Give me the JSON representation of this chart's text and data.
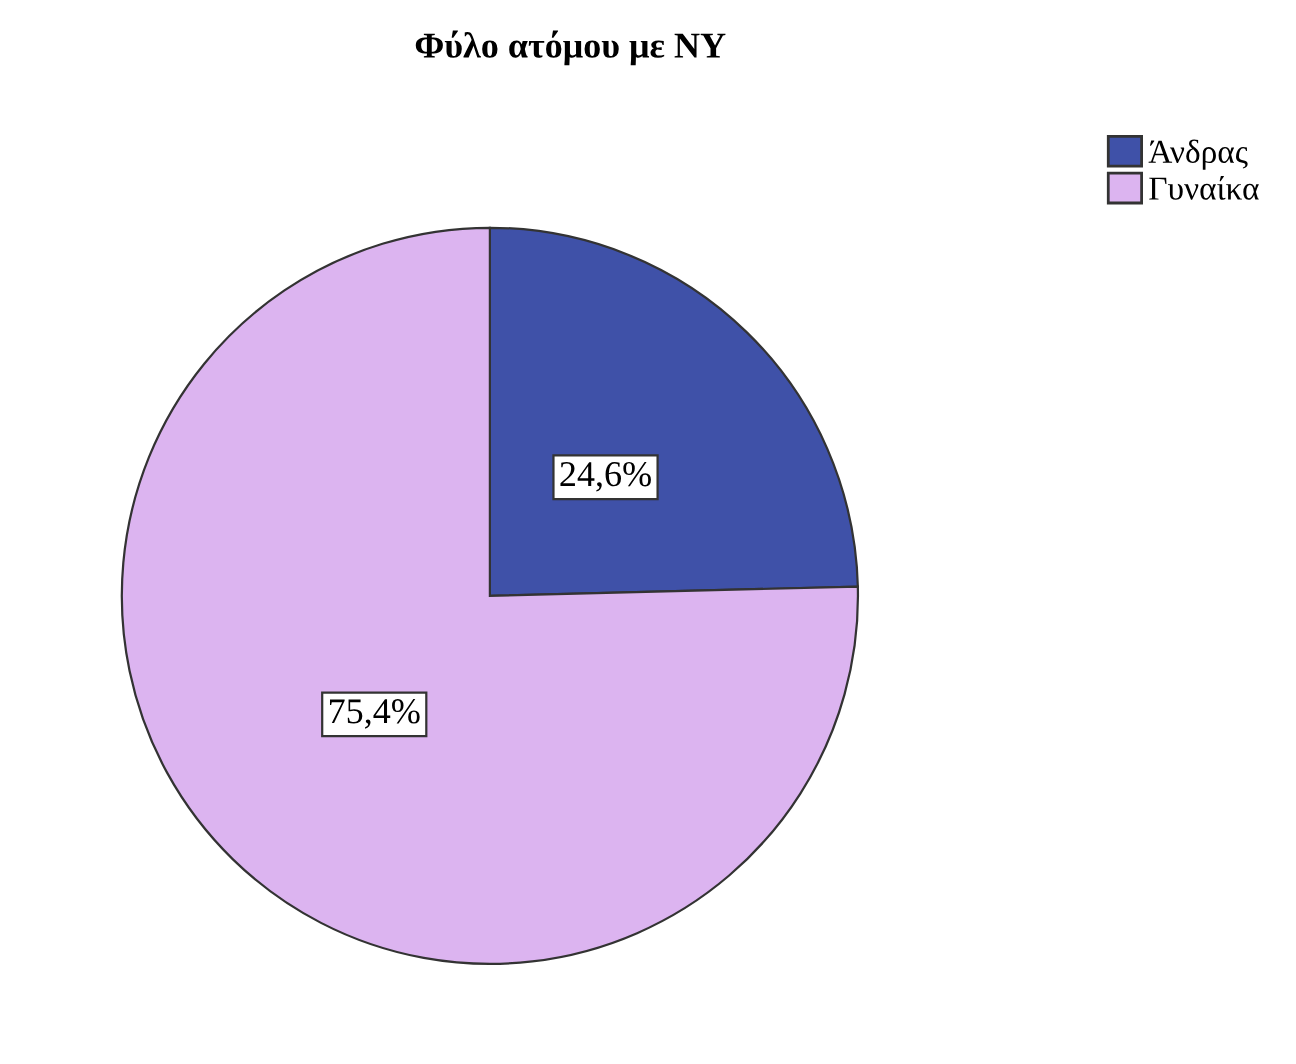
{
  "chart_data": {
    "type": "pie",
    "title": "Φύλο ατόμου με NY",
    "categories": [
      "Άνδρας",
      "Γυναίκα"
    ],
    "values": [
      24.6,
      75.4
    ],
    "colors": [
      "#3f51a8",
      "#dcb4f0"
    ],
    "value_labels": [
      "24,6%",
      "75,4%"
    ],
    "legend": "top right"
  }
}
